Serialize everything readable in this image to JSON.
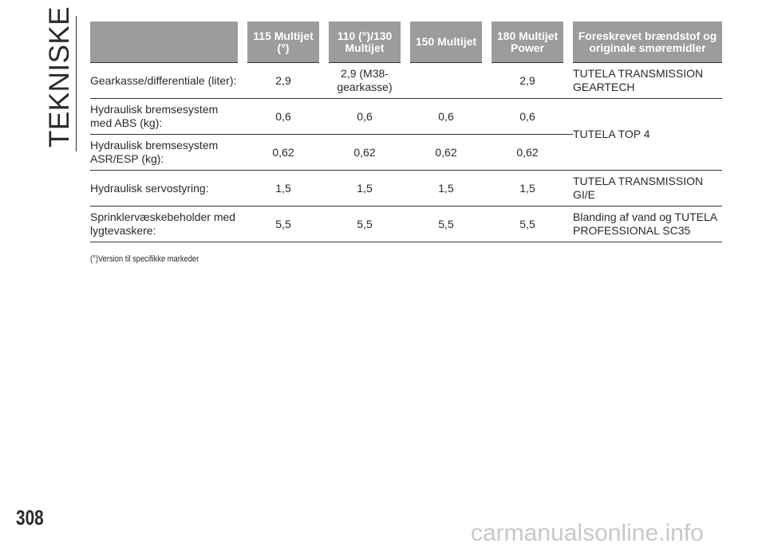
{
  "header": {
    "side_title": "TEKNISKE DATA"
  },
  "table": {
    "columns": [
      null,
      "115 Multijet (°)",
      "110 (°)/130 Multijet",
      "150 Multijet",
      "180 Multijet Power",
      "Foreskrevet brændstof og originale smøremidler"
    ],
    "rows": [
      [
        "Gearkasse/differentiale (liter):",
        "2,9",
        "2,9 (M38-gearkasse)",
        null,
        "2,9",
        "TUTELA TRANSMISSION GEARTECH"
      ],
      [
        "Hydraulisk bremsesystem med ABS (kg):",
        "0,6",
        "0,6",
        "0,6",
        "0,6",
        "TUTELA TOP 4"
      ],
      [
        "Hydraulisk bremsesystem ASR/ESP (kg):",
        "0,62",
        "0,62",
        "0,62",
        "0,62"
      ],
      [
        "Hydraulisk servostyring:",
        "1,5",
        "1,5",
        "1,5",
        "1,5",
        "TUTELA TRANSMISSION GI/E"
      ],
      [
        "Sprinklervæskebeholder med lygtevaskere:",
        "5,5",
        "5,5",
        "5,5",
        "5,5",
        "Blanding af vand og TUTELA PROFESSIONAL SC35"
      ]
    ],
    "footnote": "(°)Version til specifikke markeder"
  },
  "footer": {
    "page_number": "308",
    "watermark": "carmanualsonline.info"
  }
}
